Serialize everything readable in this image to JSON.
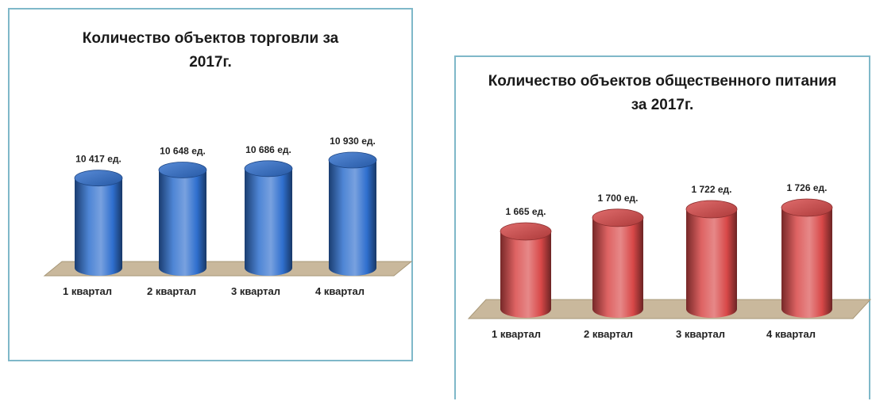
{
  "chart_data": [
    {
      "type": "bar",
      "title": "Количество объектов торговли за 2017г.",
      "categories": [
        "1 квартал",
        "2 квартал",
        "3 квартал",
        "4 квартал"
      ],
      "values": [
        10417,
        10648,
        10686,
        10930
      ],
      "data_labels": [
        "10 417 ед.",
        "10 648 ед.",
        "10 686 ед.",
        "10 930 ед."
      ],
      "xlabel": "",
      "ylabel": "",
      "ylim": [
        9800,
        10930
      ],
      "grid": false,
      "style": "3d-cylinder",
      "color": "#2f6fce"
    },
    {
      "type": "bar",
      "title": "Количество объектов общественного питания за 2017г.",
      "categories": [
        "1 квартал",
        "2 квартал",
        "3 квартал",
        "4 квартал"
      ],
      "values": [
        1665,
        1700,
        1722,
        1726
      ],
      "data_labels": [
        "1 665 ед.",
        "1 700 ед.",
        "1 722 ед.",
        "1 726 ед."
      ],
      "xlabel": "",
      "ylabel": "",
      "ylim": [
        1600,
        1726
      ],
      "grid": false,
      "style": "3d-cylinder",
      "color": "#d84848"
    }
  ]
}
